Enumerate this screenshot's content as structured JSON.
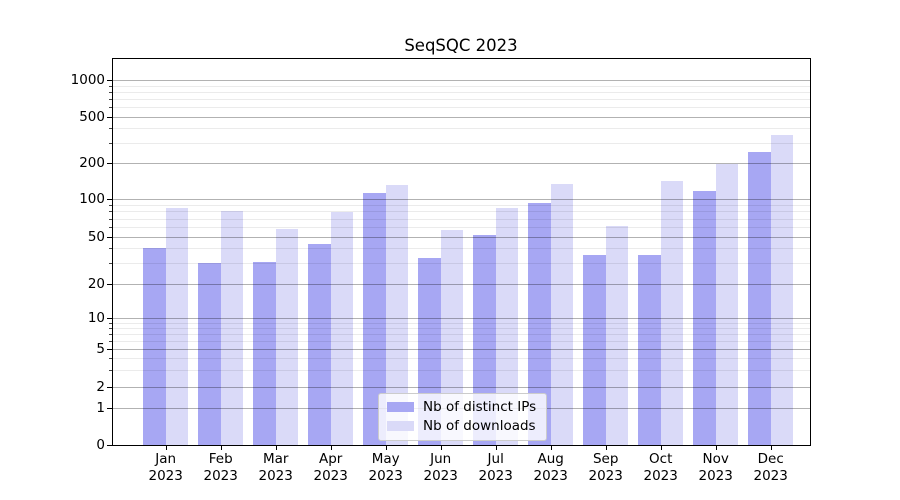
{
  "title": "SeqSQC 2023",
  "chart_data": {
    "type": "bar",
    "title": "SeqSQC 2023",
    "categories": [
      "Jan 2023",
      "Feb 2023",
      "Mar 2023",
      "Apr 2023",
      "May 2023",
      "Jun 2023",
      "Jul 2023",
      "Aug 2023",
      "Sep 2023",
      "Oct 2023",
      "Nov 2023",
      "Dec 2023"
    ],
    "series": [
      {
        "name": "Nb of distinct IPs",
        "color": "#a7a7f3",
        "values": [
          40,
          30,
          31,
          44,
          113,
          33,
          52,
          93,
          35,
          35,
          117,
          250
        ]
      },
      {
        "name": "Nb of downloads",
        "color": "#dadaf8",
        "values": [
          86,
          80,
          58,
          79,
          132,
          57,
          85,
          134,
          61,
          142,
          196,
          345
        ]
      }
    ],
    "yscale": "symlog",
    "yticks": [
      0,
      1,
      2,
      5,
      10,
      20,
      50,
      100,
      200,
      500,
      1000
    ],
    "ylim": [
      0,
      1800
    ],
    "grid": true,
    "legend_position": "lower center"
  }
}
